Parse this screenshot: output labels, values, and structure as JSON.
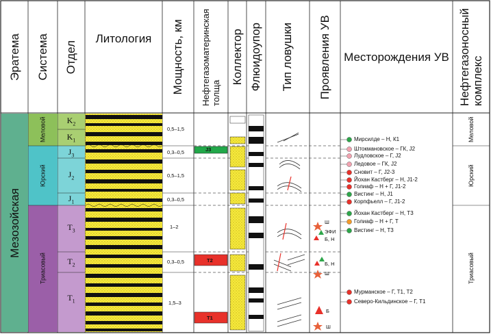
{
  "headers": {
    "eratema": "Эратема",
    "sistema": "Система",
    "otdel": "Отдел",
    "litologiya": "Литология",
    "moshchnost": "Мощность, км",
    "neftegazomaterinskaya": "Нефтегазоматеринская",
    "tolshcha": "толща",
    "kollektor": "Коллектор",
    "flyuidoupor": "Флюидоупор",
    "tip_lovushki": "Тип ловушки",
    "proyavleniya": "Проявления УВ",
    "mestorozhdeniya": "Месторождения УВ",
    "neftegazonosny": "Нефтегазоносный",
    "kompleks": "комплекс"
  },
  "eratema_value": "Мезозойская",
  "systems": [
    {
      "name": "Меловой",
      "color": "#8dc05a"
    },
    {
      "name": "Юрский",
      "color": "#4fc3c8"
    },
    {
      "name": "Триасовый",
      "color": "#9b5fa8"
    }
  ],
  "otdels": [
    {
      "sym": "K",
      "sub": "2"
    },
    {
      "sym": "K",
      "sub": "1"
    },
    {
      "sym": "J",
      "sub": "3"
    },
    {
      "sym": "J",
      "sub": "2"
    },
    {
      "sym": "J",
      "sub": "1"
    },
    {
      "sym": "T",
      "sub": "3"
    },
    {
      "sym": "T",
      "sub": "2"
    },
    {
      "sym": "T",
      "sub": "1"
    }
  ],
  "thickness": [
    "0,5–1,5",
    "0,3–0,5",
    "0,5–1,5",
    "0,3–0,5",
    "1–2",
    "0,3–0,5",
    "1,5–3"
  ],
  "source_rocks": [
    {
      "label": "J3",
      "color": "#22a84a"
    },
    {
      "label": "T2",
      "color": "#e8312a"
    },
    {
      "label": "T1",
      "color": "#e8312a"
    }
  ],
  "shows": [
    {
      "label": "Ш"
    },
    {
      "label": "ЭФИ"
    },
    {
      "label": "Б, Н"
    },
    {
      "label": "Б, Н"
    },
    {
      "label": "Ш"
    },
    {
      "label": "Б"
    },
    {
      "label": "Ш"
    }
  ],
  "fields": [
    {
      "name": "Мирсилде – Н, К1",
      "color": "#2da64a"
    },
    {
      "name": "Штокмановское – ГК, J2",
      "color": "#f2a3b0"
    },
    {
      "name": "Лудловское – Г, J2",
      "color": "#f2a3b0"
    },
    {
      "name": "Ледовое – ГК, J2",
      "color": "#f2a3b0"
    },
    {
      "name": "Сновит – Г, J2-3",
      "color": "#e8312a"
    },
    {
      "name": "Йохан Кастберг – Н, J1-2",
      "color": "#e8312a"
    },
    {
      "name": "Голиаф – Н + Г, J1-2",
      "color": "#e8312a"
    },
    {
      "name": "Вистинг – Н, J1",
      "color": "#2da64a"
    },
    {
      "name": "Корпфьелл – Г, J1-2",
      "color": "#e8312a"
    },
    {
      "name": "Йохан Кастберг – Н, Т3",
      "color": "#2da64a"
    },
    {
      "name": "Голиаф – Н + Г, Т",
      "color": "#f39a2a"
    },
    {
      "name": "Вистинг – Н, Т3",
      "color": "#2da64a"
    },
    {
      "name": "Мурманское – Г, Т1, Т2",
      "color": "#e8312a"
    },
    {
      "name": "Северо-Кильдинское – Г, Т1",
      "color": "#e8312a"
    }
  ],
  "complexes": [
    "Меловой",
    "Юрский",
    "Триасовый"
  ]
}
